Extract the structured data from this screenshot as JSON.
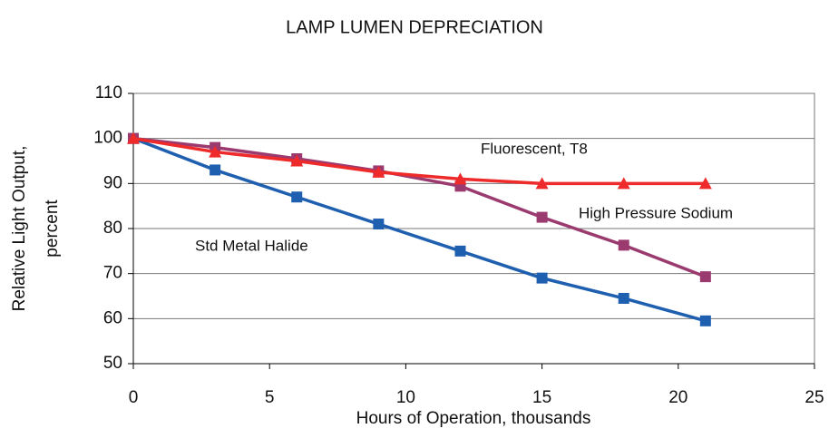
{
  "chart_data": {
    "type": "line",
    "title": "LAMP LUMEN DEPRECIATION",
    "xlabel": "Hours of Operation, thousands",
    "ylabel": [
      "Relative Light Output,",
      "percent"
    ],
    "x": [
      0,
      3,
      6,
      9,
      12,
      15,
      18,
      21
    ],
    "xlim": [
      0,
      25
    ],
    "xticks": [
      0,
      5,
      10,
      15,
      20,
      25
    ],
    "ylim": [
      50,
      110
    ],
    "yticks": [
      50,
      60,
      70,
      80,
      90,
      100,
      110
    ],
    "grid": true,
    "series": [
      {
        "name": "Std Metal Halide",
        "color": "#1f5fb0",
        "marker": "square",
        "values": [
          100,
          93,
          87,
          81,
          75,
          69,
          64.5,
          59.5
        ]
      },
      {
        "name": "High Pressure Sodium",
        "color": "#9b3a6f",
        "marker": "square",
        "values": [
          100,
          98,
          95.5,
          92.8,
          89.4,
          82.5,
          76.3,
          69.3
        ]
      },
      {
        "name": "Fluorescent, T8",
        "color": "#ee2a2a",
        "marker": "triangle",
        "values": [
          100,
          97,
          95,
          92.5,
          91,
          90,
          90,
          90
        ]
      }
    ]
  }
}
